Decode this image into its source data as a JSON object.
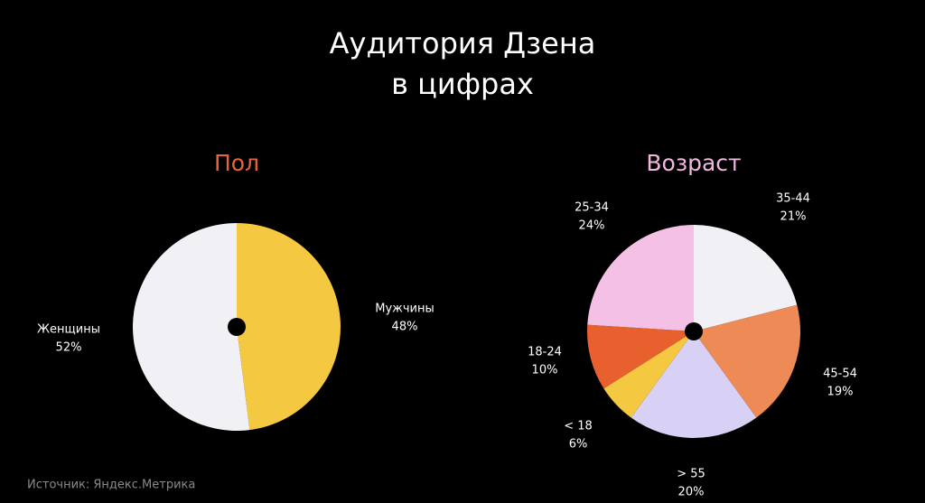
{
  "title": [
    "Аудитория Дзена",
    "в цифрах"
  ],
  "source": "Источник: Яндекс.Метрика",
  "chart_data": [
    {
      "type": "pie",
      "title": "Пол",
      "title_color": "#e8643c",
      "categories": [
        "Мужчины",
        "Женщины"
      ],
      "values": [
        48,
        52
      ],
      "value_labels": [
        "48%",
        "52%"
      ],
      "colors": [
        "#f5c842",
        "#f0f0f5"
      ]
    },
    {
      "type": "pie",
      "title": "Возраст",
      "title_color": "#f0b8e0",
      "categories": [
        "35-44",
        "45-54",
        "> 55",
        "< 18",
        "18-24",
        "25-34"
      ],
      "values": [
        21,
        19,
        20,
        6,
        10,
        24
      ],
      "value_labels": [
        "21%",
        "19%",
        "20%",
        "6%",
        "10%",
        "24%"
      ],
      "colors": [
        "#f0f0f5",
        "#ee8a55",
        "#d8d0f5",
        "#f5c842",
        "#e8602e",
        "#f5c0e5"
      ]
    }
  ]
}
